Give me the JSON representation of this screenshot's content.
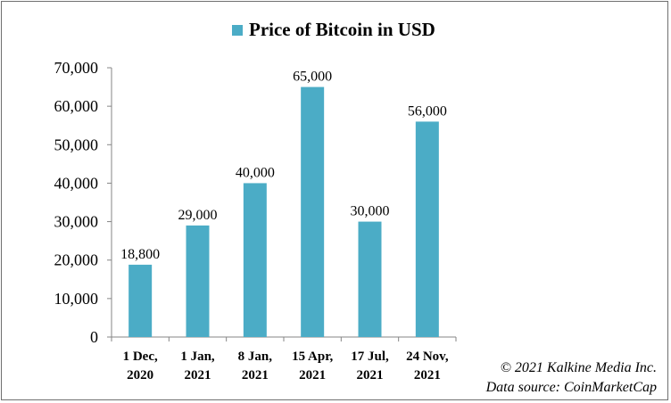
{
  "chart_data": {
    "type": "bar",
    "title": "",
    "categories": [
      [
        "1 Dec,",
        "2020"
      ],
      [
        "1 Jan,",
        "2021"
      ],
      [
        "8 Jan,",
        "2021"
      ],
      [
        "15 Apr,",
        "2021"
      ],
      [
        "17 Jul,",
        "2021"
      ],
      [
        "24 Nov,",
        "2021"
      ]
    ],
    "series": [
      {
        "name": "Price of Bitcoin in USD",
        "values": [
          18800,
          29000,
          40000,
          65000,
          30000,
          56000
        ],
        "labels": [
          "18,800",
          "29,000",
          "40,000",
          "65,000",
          "30,000",
          "56,000"
        ]
      }
    ],
    "ylim": [
      0,
      70000
    ],
    "yticks": [
      0,
      10000,
      20000,
      30000,
      40000,
      50000,
      60000,
      70000
    ],
    "ytick_labels": [
      "0",
      "10,000",
      "20,000",
      "30,000",
      "40,000",
      "50,000",
      "60,000",
      "70,000"
    ],
    "xlabel": "",
    "ylabel": "",
    "grid": false,
    "legend_position": "top-center",
    "bar_color": "#4bacc6",
    "axis_color": "#868686"
  },
  "credits": {
    "copyright": "© 2021 Kalkine Media Inc.",
    "source": "Data source: CoinMarketCap"
  }
}
